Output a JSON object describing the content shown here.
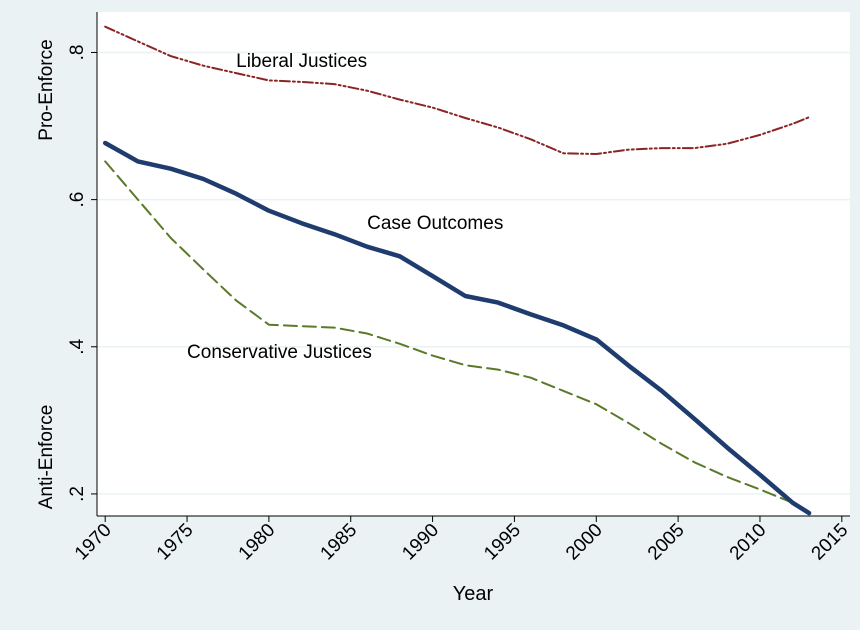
{
  "chart_data": {
    "type": "line",
    "title": "",
    "xlabel": "Year",
    "ylabel": "",
    "y_top_label": "Pro-Enforce",
    "y_bottom_label": "Anti-Enforce",
    "xlim": [
      1969.5,
      2015.5
    ],
    "ylim": [
      0.17,
      0.855
    ],
    "x_ticks": [
      1970,
      1975,
      1980,
      1985,
      1990,
      1995,
      2000,
      2005,
      2010,
      2015
    ],
    "x_tick_labels": [
      "1970",
      "1975",
      "1980",
      "1985",
      "1990",
      "1995",
      "2000",
      "2005",
      "2010",
      "2015"
    ],
    "y_ticks": [
      0.2,
      0.4,
      0.6,
      0.8
    ],
    "y_tick_labels": [
      ".2",
      ".4",
      ".6",
      ".8"
    ],
    "grid": true,
    "legend": "none (inline labels)",
    "series": [
      {
        "name": "Liberal Justices",
        "color": "#8b2525",
        "style": "dash-dot",
        "label_at": [
          1978,
          0.78
        ],
        "x": [
          1970,
          1972,
          1974,
          1976,
          1978,
          1980,
          1982,
          1984,
          1986,
          1988,
          1990,
          1992,
          1994,
          1996,
          1998,
          2000,
          2002,
          2004,
          2006,
          2008,
          2010,
          2012,
          2013
        ],
        "y": [
          0.835,
          0.815,
          0.795,
          0.782,
          0.772,
          0.762,
          0.76,
          0.757,
          0.748,
          0.736,
          0.725,
          0.711,
          0.698,
          0.682,
          0.663,
          0.662,
          0.668,
          0.67,
          0.67,
          0.676,
          0.688,
          0.703,
          0.712
        ]
      },
      {
        "name": "Case Outcomes",
        "color": "#1f3c6e",
        "style": "solid",
        "label_at": [
          1986,
          0.56
        ],
        "x": [
          1970,
          1972,
          1974,
          1976,
          1978,
          1980,
          1982,
          1984,
          1986,
          1988,
          1990,
          1992,
          1994,
          1996,
          1998,
          2000,
          2002,
          2004,
          2006,
          2008,
          2010,
          2012,
          2013
        ],
        "y": [
          0.677,
          0.652,
          0.642,
          0.628,
          0.608,
          0.585,
          0.568,
          0.553,
          0.536,
          0.523,
          0.496,
          0.469,
          0.46,
          0.444,
          0.429,
          0.41,
          0.374,
          0.34,
          0.302,
          0.263,
          0.226,
          0.188,
          0.174
        ]
      },
      {
        "name": "Conservative Justices",
        "color": "#5a7a2a",
        "style": "dashed",
        "label_at": [
          1975,
          0.385
        ],
        "x": [
          1970,
          1972,
          1974,
          1976,
          1978,
          1980,
          1982,
          1984,
          1986,
          1988,
          1990,
          1992,
          1994,
          1996,
          1998,
          2000,
          2002,
          2004,
          2006,
          2008,
          2010,
          2012,
          2013
        ],
        "y": [
          0.652,
          0.6,
          0.548,
          0.505,
          0.463,
          0.43,
          0.428,
          0.426,
          0.418,
          0.404,
          0.388,
          0.375,
          0.369,
          0.358,
          0.34,
          0.322,
          0.296,
          0.268,
          0.243,
          0.223,
          0.206,
          0.188,
          0.176
        ]
      }
    ]
  }
}
